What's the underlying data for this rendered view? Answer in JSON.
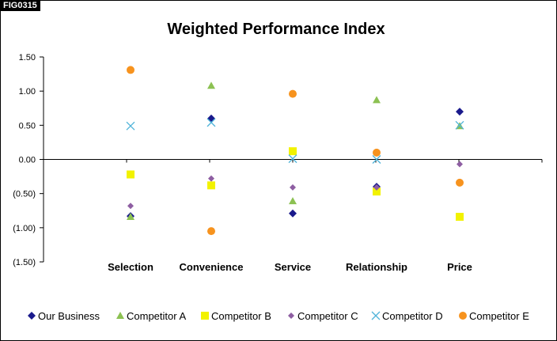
{
  "figure_label": "FIG0315",
  "chart_data": {
    "type": "scatter",
    "title": "Weighted Performance Index",
    "categories": [
      "Selection",
      "Convenience",
      "Service",
      "Relationship",
      "Price"
    ],
    "ylim": [
      -1.5,
      1.5
    ],
    "yticks": [
      1.5,
      1.0,
      0.5,
      0.0,
      -0.5,
      -1.0,
      -1.5
    ],
    "ytick_labels": [
      "1.50",
      "1.00",
      "0.50",
      "0.00",
      "(0.50)",
      "(1.00)",
      "(1.50)"
    ],
    "grid": false,
    "legend_position": "bottom",
    "series": [
      {
        "name": "Our Business",
        "marker": "diamond",
        "color": "#1a1a8c",
        "values": [
          -0.83,
          0.6,
          -0.79,
          -0.4,
          0.7
        ]
      },
      {
        "name": "Competitor A",
        "marker": "triangle",
        "color": "#8cc152",
        "values": [
          -0.84,
          1.08,
          -0.61,
          0.87,
          0.49
        ]
      },
      {
        "name": "Competitor B",
        "marker": "square",
        "color": "#f2f200",
        "values": [
          -0.22,
          -0.38,
          0.12,
          -0.47,
          -0.84
        ]
      },
      {
        "name": "Competitor C",
        "marker": "diamond",
        "color": "#8e5ea2",
        "values": [
          -0.68,
          -0.28,
          -0.41,
          -0.41,
          -0.07
        ]
      },
      {
        "name": "Competitor D",
        "marker": "x",
        "color": "#4fb3d9",
        "values": [
          0.49,
          0.54,
          0.01,
          0.0,
          0.5
        ]
      },
      {
        "name": "Competitor E",
        "marker": "circle",
        "color": "#f7931e",
        "values": [
          1.31,
          -1.05,
          0.96,
          0.1,
          -0.34
        ]
      }
    ]
  }
}
